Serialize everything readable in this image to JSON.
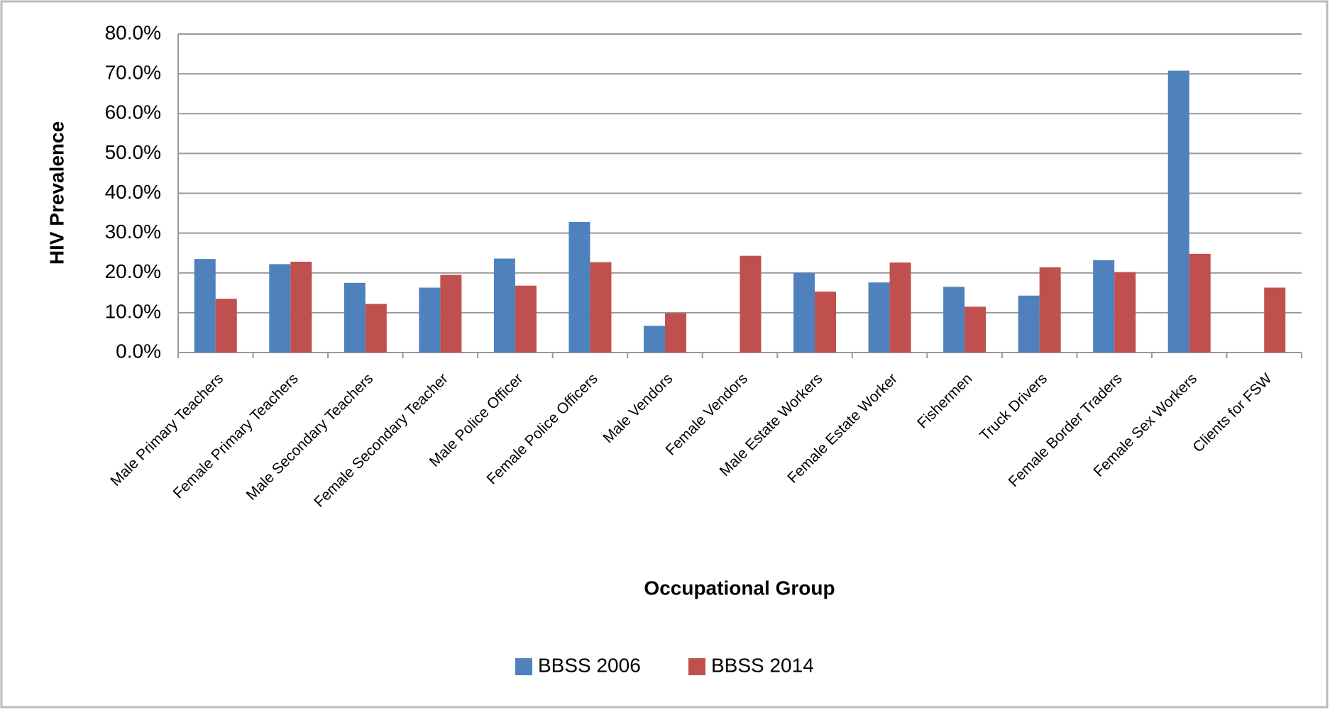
{
  "chart_data": {
    "type": "bar",
    "y_label": "HIV Prevalence",
    "x_label": "Occupational Group",
    "categories": [
      "Male Primary Teachers",
      "Female Primary Teachers",
      "Male Secondary Teachers",
      "Female Secondary Teacher",
      "Male Police Officer",
      "Female Police Officers",
      "Male Vendors",
      "Female Vendors",
      "Male Estate Workers",
      "Female Estate Worker",
      "Fishermen",
      "Truck Drivers",
      "Female Border Traders",
      "Female Sex Workers",
      "Clients for FSW"
    ],
    "series": [
      {
        "name": "BBSS 2006",
        "color": "#4f81bd",
        "values": [
          23.5,
          22.2,
          17.5,
          16.3,
          23.6,
          32.8,
          6.7,
          null,
          20.0,
          17.6,
          16.5,
          14.3,
          23.2,
          70.8,
          null
        ]
      },
      {
        "name": "BBSS 2014",
        "color": "#c0504d",
        "values": [
          13.5,
          22.8,
          12.2,
          19.5,
          16.8,
          22.7,
          9.9,
          24.3,
          15.3,
          22.6,
          11.5,
          21.4,
          20.2,
          24.8,
          16.3
        ]
      }
    ],
    "ylim": [
      0,
      80
    ],
    "yticks": [
      {
        "value": 0,
        "label": "0.0%"
      },
      {
        "value": 10,
        "label": "10.0%"
      },
      {
        "value": 20,
        "label": "20.0%"
      },
      {
        "value": 30,
        "label": "30.0%"
      },
      {
        "value": 40,
        "label": "40.0%"
      },
      {
        "value": 50,
        "label": "50.0%"
      },
      {
        "value": 60,
        "label": "60.0%"
      },
      {
        "value": 70,
        "label": "70.0%"
      },
      {
        "value": 80,
        "label": "80.0%"
      }
    ],
    "grid": true,
    "legend": "bottom"
  }
}
